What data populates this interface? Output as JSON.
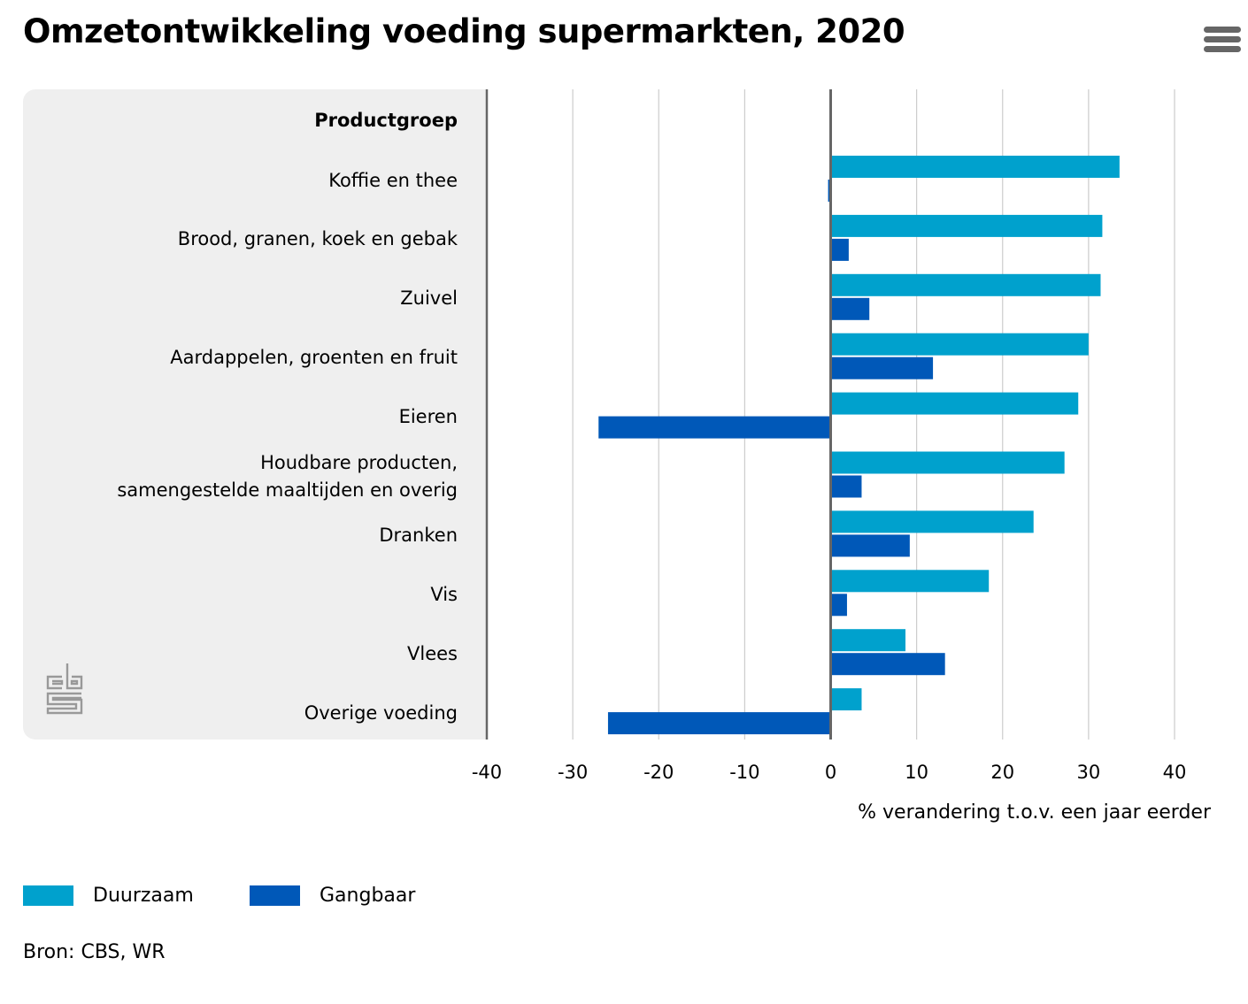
{
  "title": "Omzetontwikkeling voeding supermarkten, 2020",
  "menu_icon": "hamburger-menu-icon",
  "logo": "cbs-logo",
  "source": "Bron: CBS, WR",
  "colors": {
    "duurzaam": "#00a1cd",
    "gangbaar": "#0058b8",
    "axis": "#666666",
    "grid": "#cccccc",
    "panel": "#efefef"
  },
  "chart_data": {
    "type": "bar",
    "orientation": "horizontal",
    "title": "Omzetontwikkeling voeding supermarkten, 2020",
    "category_header": "Productgroep",
    "categories": [
      "Koffie en thee",
      "Brood, granen, koek en gebak",
      "Zuivel",
      "Aardappelen, groenten en fruit",
      "Eieren",
      "Houdbare producten, samengestelde maaltijden en overig",
      "Dranken",
      "Vis",
      "Vlees",
      "Overige voeding"
    ],
    "category_lines": [
      [
        "Koffie en thee"
      ],
      [
        "Brood, granen, koek en gebak"
      ],
      [
        "Zuivel"
      ],
      [
        "Aardappelen, groenten en fruit"
      ],
      [
        "Eieren"
      ],
      [
        "Houdbare producten,",
        "samengestelde maaltijden en overig"
      ],
      [
        "Dranken"
      ],
      [
        "Vis"
      ],
      [
        "Vlees"
      ],
      [
        "Overige voeding"
      ]
    ],
    "series": [
      {
        "name": "Duurzaam",
        "color": "#00a1cd",
        "values": [
          33.6,
          31.6,
          31.4,
          30.0,
          28.8,
          27.2,
          23.6,
          18.4,
          8.7,
          3.6
        ]
      },
      {
        "name": "Gangbaar",
        "color": "#0058b8",
        "values": [
          -0.3,
          2.1,
          4.5,
          11.9,
          -27.0,
          3.6,
          9.2,
          1.9,
          13.3,
          -25.9
        ]
      }
    ],
    "xlabel": "% verandering t.o.v. een jaar eerder",
    "ylabel": "",
    "xlim": [
      -40,
      40
    ],
    "xticks": [
      -40,
      -30,
      -20,
      -10,
      0,
      10,
      20,
      30,
      40
    ],
    "xtick_labels": [
      "-40",
      "-30",
      "-20",
      "-10",
      "0",
      "10",
      "20",
      "30",
      "40"
    ],
    "grid": true,
    "legend_position": "bottom-left"
  }
}
